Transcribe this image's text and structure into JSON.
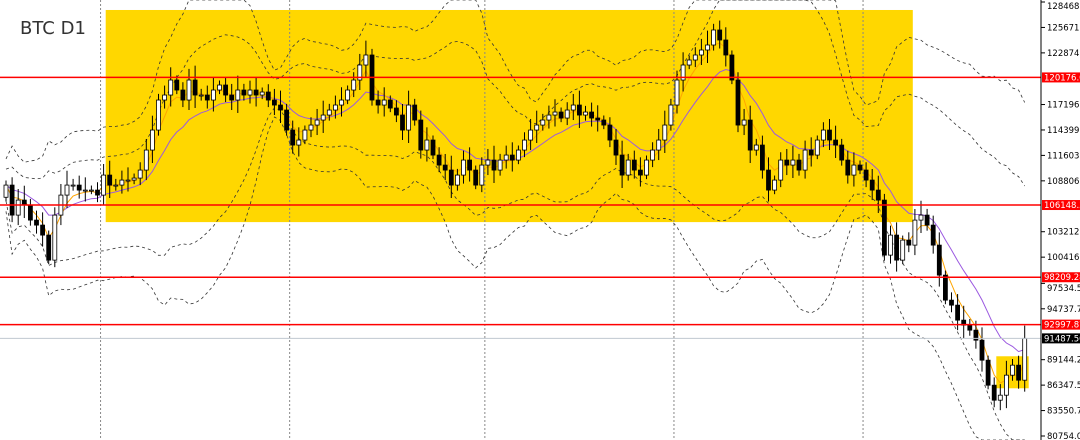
{
  "title": "BTC D1",
  "colors": {
    "zone": "#FFD700",
    "level_line": "#FF0000",
    "current_line": "#C0C8D0",
    "bull": "#FFFFFF",
    "bear": "#000000",
    "fast_ma": "#FFA500",
    "slow_ma": "#9B59E0",
    "bands": "#333333"
  },
  "chart_data": {
    "type": "candlestick",
    "symbol": "BTC",
    "timeframe": "D1",
    "ylim": [
      80754.0,
      128468.25
    ],
    "y_ticks": [
      "128468.25",
      "125671.50",
      "122874.75",
      "117196.50",
      "114399.75",
      "111603.00",
      "108806.25",
      "103212.75",
      "100416.00",
      "97534.50",
      "94737.75",
      "89144.25",
      "86347.50",
      "83550.75",
      "80754.00"
    ],
    "grid": false,
    "period_separators_after_candle": [
      15.5,
      46.5,
      78.5,
      109.5,
      140.5
    ],
    "close": [
      108340,
      105040,
      106690,
      106140,
      104490,
      103940,
      102840,
      100090,
      105040,
      107240,
      108340,
      108340,
      107790,
      107790,
      107790,
      107240,
      109440,
      108340,
      108340,
      108890,
      108890,
      109110,
      109990,
      112190,
      114390,
      117690,
      118240,
      119890,
      118790,
      117690,
      119890,
      118240,
      118240,
      117690,
      118790,
      119340,
      118240,
      117690,
      118790,
      118240,
      118790,
      118240,
      118570,
      117690,
      117140,
      116590,
      114390,
      112740,
      113290,
      114390,
      114940,
      115490,
      116040,
      116590,
      117140,
      117690,
      118790,
      119890,
      121540,
      122640,
      117690,
      117140,
      117690,
      116810,
      116040,
      114390,
      117140,
      115490,
      112190,
      113290,
      111640,
      110540,
      109990,
      108340,
      109440,
      111090,
      109990,
      108340,
      110540,
      111090,
      109990,
      111090,
      111640,
      111090,
      112190,
      113290,
      114390,
      114940,
      115490,
      116040,
      116370,
      115710,
      116590,
      117140,
      116040,
      116370,
      115710,
      115490,
      114940,
      113290,
      111640,
      109440,
      111090,
      109990,
      109440,
      111090,
      112190,
      113290,
      114940,
      117140,
      119890,
      121540,
      122090,
      122640,
      123190,
      123740,
      125390,
      124290,
      122640,
      119890,
      114940,
      115490,
      112190,
      112740,
      109990,
      107790,
      108890,
      111090,
      110540,
      111090,
      109990,
      112190,
      111640,
      113290,
      114390,
      113290,
      112740,
      111090,
      109440,
      110540,
      109990,
      108890,
      107790,
      106690,
      100640,
      102840,
      100090,
      102290,
      101740,
      104490,
      105040,
      103940,
      101740,
      98440,
      95690,
      95140,
      93490,
      92940,
      92390,
      91290,
      89090,
      86340,
      84690,
      85240,
      87440,
      88540,
      86890,
      91487.5
    ],
    "levels": [
      {
        "price": 120176.06,
        "label": "120176.06"
      },
      {
        "price": 106148.38,
        "label": "106148.38"
      },
      {
        "price": 98209.28,
        "label": "98209.28"
      },
      {
        "price": 92997.87,
        "label": "92997.87"
      }
    ],
    "current_price": {
      "price": 91487.5,
      "label": "91487.50"
    },
    "zones": [
      {
        "from_candle": 17,
        "to_candle": 148,
        "price_low": 104270,
        "price_high": 127590
      },
      {
        "from_candle": 163,
        "to_candle": 167,
        "price_low": 86000,
        "price_high": 89520
      }
    ],
    "indicators": [
      "fast moving average (orange)",
      "slow moving average (purple)",
      "bollinger bands inner (dashed)",
      "bollinger bands outer (dashed)"
    ]
  }
}
